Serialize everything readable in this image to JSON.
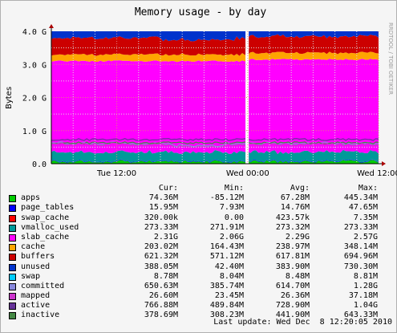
{
  "chart_data": {
    "type": "area",
    "title": "Memory usage - by day",
    "ylabel": "Bytes",
    "watermark": "RRDTOOL / TOBI OETIKER",
    "ylim": [
      0,
      4.0
    ],
    "yunit": "G",
    "yticks": [
      "0.0",
      "1.0 G",
      "2.0 G",
      "3.0 G",
      "4.0 G"
    ],
    "xticks": [
      "Tue 12:00",
      "Wed 00:00",
      "Wed 12:00"
    ],
    "x_hours": [
      0,
      30
    ],
    "xtick_hours": [
      6,
      18,
      30
    ],
    "gap_hours": [
      17.8,
      18.1
    ],
    "legend_header": {
      "cur": "Cur:",
      "min": "Min:",
      "avg": "Avg:",
      "max": "Max:"
    },
    "series": [
      {
        "name": "apps",
        "color": "#00cc00",
        "cur": "74.36M",
        "min": "-85.12M",
        "avg": "67.28M",
        "max": "445.34M"
      },
      {
        "name": "page_tables",
        "color": "#0000ff",
        "cur": "15.95M",
        "min": "7.93M",
        "avg": "14.76M",
        "max": "47.65M"
      },
      {
        "name": "swap_cache",
        "color": "#ff0000",
        "cur": "320.00k",
        "min": "0.00",
        "avg": "423.57k",
        "max": "7.35M"
      },
      {
        "name": "vmalloc_used",
        "color": "#009999",
        "cur": "273.33M",
        "min": "271.91M",
        "avg": "273.32M",
        "max": "273.33M"
      },
      {
        "name": "slab_cache",
        "color": "#ff00ff",
        "cur": "2.31G",
        "min": "2.06G",
        "avg": "2.29G",
        "max": "2.57G"
      },
      {
        "name": "cache",
        "color": "#ffa500",
        "cur": "203.02M",
        "min": "164.43M",
        "avg": "238.97M",
        "max": "348.14M"
      },
      {
        "name": "buffers",
        "color": "#cc0000",
        "cur": "621.32M",
        "min": "571.12M",
        "avg": "617.81M",
        "max": "694.96M"
      },
      {
        "name": "unused",
        "color": "#0033cc",
        "cur": "388.05M",
        "min": "42.40M",
        "avg": "383.90M",
        "max": "730.30M"
      },
      {
        "name": "swap",
        "color": "#00ccff",
        "cur": "8.78M",
        "min": "8.04M",
        "avg": "8.48M",
        "max": "8.81M"
      },
      {
        "name": "committed",
        "color": "#8888dd",
        "cur": "650.63M",
        "min": "385.74M",
        "avg": "614.70M",
        "max": "1.28G"
      },
      {
        "name": "mapped",
        "color": "#cc33cc",
        "cur": "26.60M",
        "min": "23.45M",
        "avg": "26.36M",
        "max": "37.18M"
      },
      {
        "name": "active",
        "color": "#663399",
        "cur": "766.88M",
        "min": "489.84M",
        "avg": "728.90M",
        "max": "1.04G"
      },
      {
        "name": "inactive",
        "color": "#448844",
        "cur": "378.69M",
        "min": "308.23M",
        "avg": "441.90M",
        "max": "643.33M"
      }
    ],
    "stack_profile_gb": {
      "apps": 0.07,
      "page_tables": 0.015,
      "vmalloc_used": 0.27,
      "slab_cache_top": 3.1,
      "cache_top": 3.3,
      "buffers_top": 3.8,
      "total": 4.0,
      "committed_line": 0.62,
      "active_line": 0.73
    },
    "grid": true
  },
  "footer": {
    "last_update": "Last update: Wed Dec  8 12:20:05 2010"
  }
}
